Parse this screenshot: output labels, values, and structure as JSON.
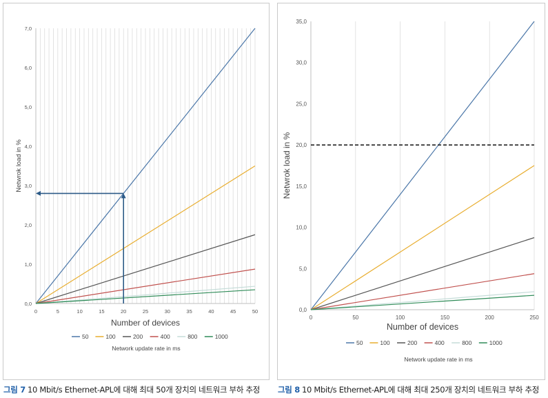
{
  "figures": [
    {
      "caption_num": "그림 7",
      "caption_text": "10 Mbit/s Ethernet-APL에 대해 최대 50개 장치의 네트워크 부하 추정"
    },
    {
      "caption_num": "그림 8",
      "caption_text": "10 Mbit/s Ethernet-APL에 대해 최대 250개 장치의 네트워크 부하 추정"
    }
  ],
  "colors": {
    "50": "#4a76a8",
    "100": "#e8ad2e",
    "200": "#555555",
    "400": "#c0504d",
    "800": "#c4dcd8",
    "1000": "#2e8b57",
    "annotation_arrow": "#2c5a87",
    "threshold": "#222222"
  },
  "chart_data": [
    {
      "type": "line",
      "xlabel": "Number of devices",
      "ylabel": "Netwrok load in %",
      "x_ticks": [
        0,
        5,
        10,
        15,
        20,
        25,
        30,
        35,
        40,
        45,
        50
      ],
      "x_tick_labels": [
        "0",
        "5",
        "10",
        "15",
        "20",
        "25",
        "30",
        "35",
        "40",
        "45",
        "50"
      ],
      "y_ticks": [
        0,
        1,
        2,
        3,
        4,
        5,
        6,
        7
      ],
      "y_tick_labels": [
        "0,0",
        "1,0",
        "2,0",
        "3,0",
        "4,0",
        "5,0",
        "6,0",
        "7,0"
      ],
      "xlim": [
        0,
        50
      ],
      "ylim": [
        0,
        7
      ],
      "grid": "vertical minor every 1 device",
      "legend_position": "bottom",
      "legend_title": "Network update rate in ms",
      "series": [
        {
          "name": "50",
          "x": [
            0,
            50
          ],
          "values": [
            0,
            7.0
          ]
        },
        {
          "name": "100",
          "x": [
            0,
            50
          ],
          "values": [
            0,
            3.5
          ]
        },
        {
          "name": "200",
          "x": [
            0,
            50
          ],
          "values": [
            0,
            1.75
          ]
        },
        {
          "name": "400",
          "x": [
            0,
            50
          ],
          "values": [
            0,
            0.875
          ]
        },
        {
          "name": "800",
          "x": [
            0,
            50
          ],
          "values": [
            0,
            0.4375
          ]
        },
        {
          "name": "1000",
          "x": [
            0,
            50
          ],
          "values": [
            0,
            0.35
          ]
        }
      ],
      "annotation": {
        "x": 20,
        "y": 2.8
      }
    },
    {
      "type": "line",
      "xlabel": "Number of devices",
      "ylabel": "Netwrok load in %",
      "x_ticks": [
        0,
        50,
        100,
        150,
        200,
        250
      ],
      "x_tick_labels": [
        "0",
        "50",
        "100",
        "150",
        "200",
        "250"
      ],
      "y_ticks": [
        0,
        5,
        10,
        15,
        20,
        25,
        30,
        35
      ],
      "y_tick_labels": [
        "0,0",
        "5,0",
        "10,0",
        "15,0",
        "20,0",
        "25,0",
        "30,0",
        "35,0"
      ],
      "xlim": [
        0,
        250
      ],
      "ylim": [
        0,
        35
      ],
      "grid": "vertical every 50 devices",
      "legend_position": "bottom",
      "legend_title": "Network update rate in ms",
      "series": [
        {
          "name": "50",
          "x": [
            0,
            250
          ],
          "values": [
            0,
            35.0
          ]
        },
        {
          "name": "100",
          "x": [
            0,
            250
          ],
          "values": [
            0,
            17.5
          ]
        },
        {
          "name": "200",
          "x": [
            0,
            250
          ],
          "values": [
            0,
            8.75
          ]
        },
        {
          "name": "400",
          "x": [
            0,
            250
          ],
          "values": [
            0,
            4.375
          ]
        },
        {
          "name": "800",
          "x": [
            0,
            250
          ],
          "values": [
            0,
            2.1875
          ]
        },
        {
          "name": "1000",
          "x": [
            0,
            250
          ],
          "values": [
            0,
            1.75
          ]
        }
      ],
      "threshold": 20
    }
  ]
}
